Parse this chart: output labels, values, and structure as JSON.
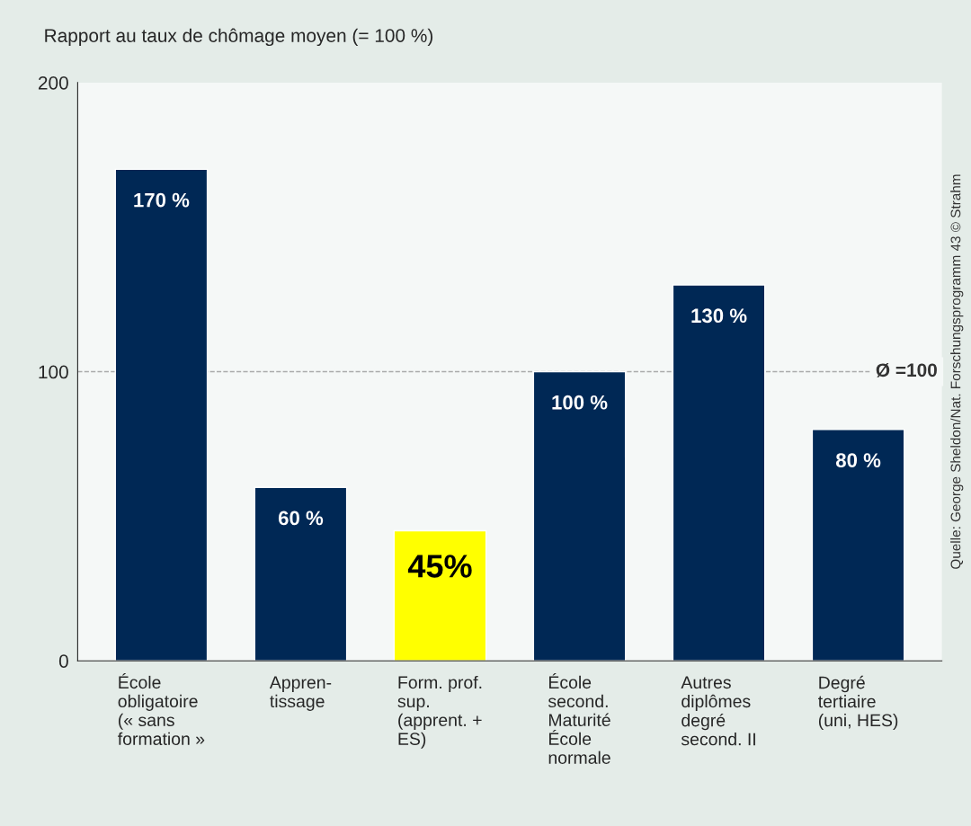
{
  "chart_data": {
    "type": "bar",
    "title": "Rapport au taux de chômage moyen (= 100 %)",
    "categories": [
      "École\nobligatoire\n(« sans\nformation »",
      "Appren-\ntissage",
      "Form. prof.\nsup.\n(apprent. +\nES)",
      "École\nsecond.\nMaturité\nÉcole\nnormale",
      "Autres\ndiplômes\ndegré\nsecond. II",
      "Degré\ntertiaire\n(uni, HES)"
    ],
    "values": [
      170,
      60,
      45,
      100,
      130,
      80
    ],
    "colors": [
      "#002855",
      "#002855",
      "#ffff00",
      "#002855",
      "#002855",
      "#002855"
    ],
    "value_labels": [
      "170 %",
      "60 %",
      "45%",
      "100 %",
      "130 %",
      "80 %"
    ],
    "ylim": [
      0,
      200
    ],
    "yticks": [
      0,
      100,
      200
    ],
    "ref_lines": [
      {
        "axis": "y",
        "value": 100,
        "label": "Ø =100",
        "color": "#aaaaaa",
        "line_style": "dashed"
      }
    ],
    "annotations": [
      "Quelle: George Sheldon/Nat. Forschungsprogramm 43 © Strahm"
    ],
    "grid": false,
    "legend": false
  }
}
